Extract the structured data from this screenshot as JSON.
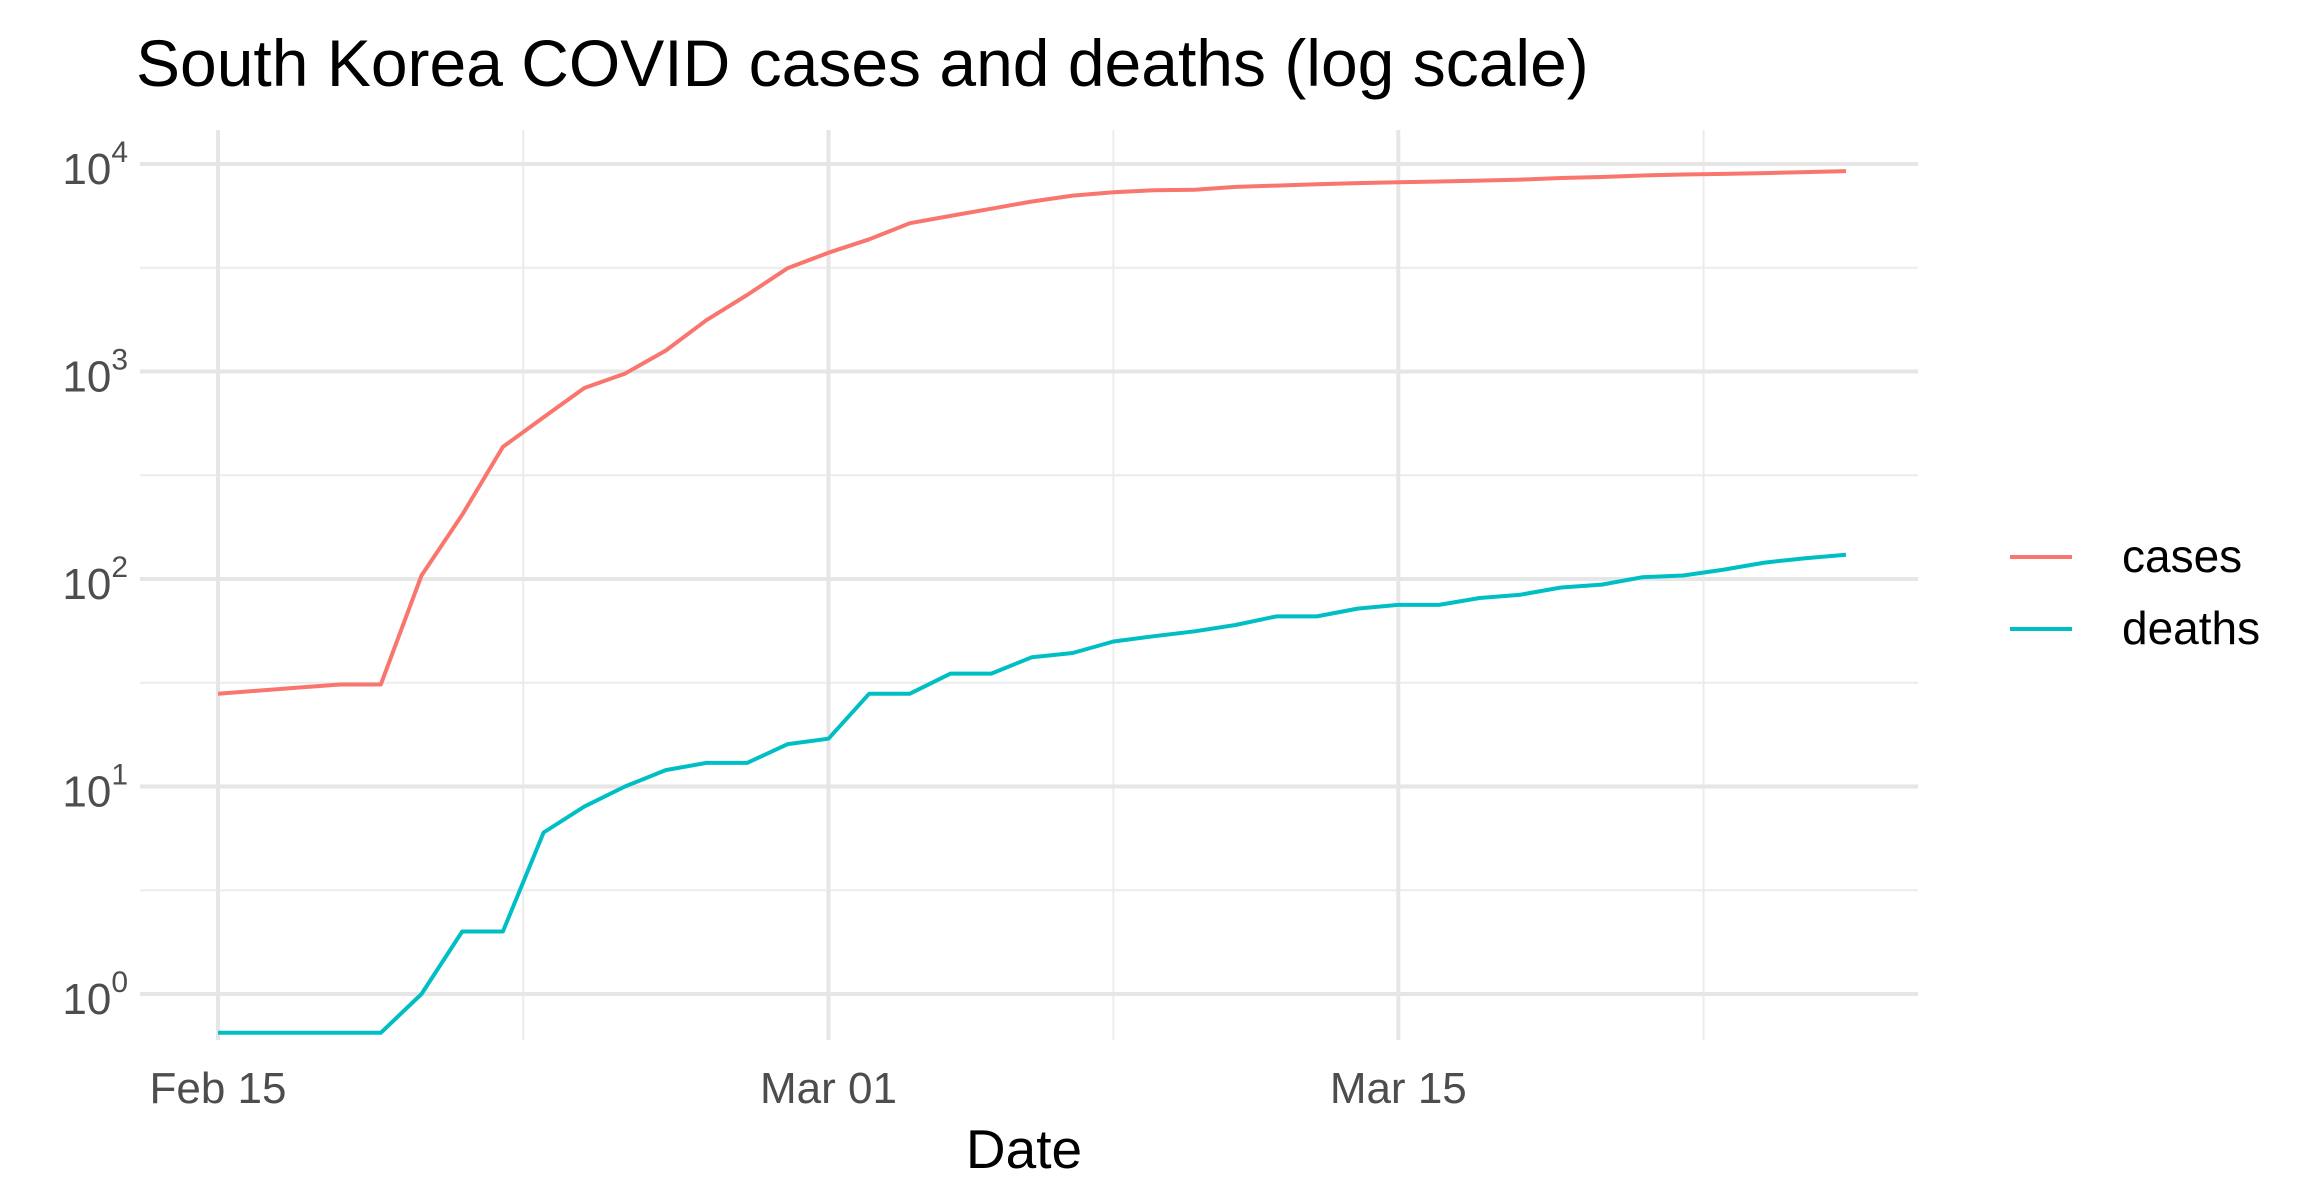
{
  "chart_data": {
    "type": "line",
    "title": "South Korea COVID cases and deaths (log scale)",
    "xlabel": "Date",
    "ylabel": "",
    "x_ticks": [
      {
        "label": "Feb 15",
        "date": "2020-02-15"
      },
      {
        "label": "Mar 01",
        "date": "2020-03-01"
      },
      {
        "label": "Mar 15",
        "date": "2020-03-15"
      }
    ],
    "y_scale": "log10",
    "y_ticks": [
      {
        "base": "10",
        "exp": "0",
        "value": 1
      },
      {
        "base": "10",
        "exp": "1",
        "value": 10
      },
      {
        "base": "10",
        "exp": "2",
        "value": 100
      },
      {
        "base": "10",
        "exp": "3",
        "value": 1000
      },
      {
        "base": "10",
        "exp": "4",
        "value": 10000
      }
    ],
    "x_range": [
      "2020-02-15",
      "2020-03-26"
    ],
    "ylim": [
      0.65,
      9500
    ],
    "grid": true,
    "legend_position": "right",
    "x": [
      "2020-02-15",
      "2020-02-16",
      "2020-02-17",
      "2020-02-18",
      "2020-02-19",
      "2020-02-20",
      "2020-02-21",
      "2020-02-22",
      "2020-02-23",
      "2020-02-24",
      "2020-02-25",
      "2020-02-26",
      "2020-02-27",
      "2020-02-28",
      "2020-02-29",
      "2020-03-01",
      "2020-03-02",
      "2020-03-03",
      "2020-03-04",
      "2020-03-05",
      "2020-03-06",
      "2020-03-07",
      "2020-03-08",
      "2020-03-09",
      "2020-03-10",
      "2020-03-11",
      "2020-03-12",
      "2020-03-13",
      "2020-03-14",
      "2020-03-15",
      "2020-03-16",
      "2020-03-17",
      "2020-03-18",
      "2020-03-19",
      "2020-03-20",
      "2020-03-21",
      "2020-03-22",
      "2020-03-23",
      "2020-03-24",
      "2020-03-25",
      "2020-03-26"
    ],
    "series": [
      {
        "name": "cases",
        "color": "#F8766D",
        "values": [
          28,
          29,
          30,
          31,
          31,
          104,
          204,
          433,
          602,
          833,
          977,
          1261,
          1766,
          2337,
          3150,
          3736,
          4335,
          5186,
          5621,
          6088,
          6593,
          7041,
          7313,
          7478,
          7513,
          7755,
          7869,
          7979,
          8086,
          8162,
          8236,
          8320,
          8413,
          8565,
          8652,
          8799,
          8897,
          8961,
          9037,
          9137,
          9241
        ]
      },
      {
        "name": "deaths",
        "color": "#00BFC4",
        "values": [
          0.65,
          0.65,
          0.65,
          0.65,
          0.65,
          1,
          2,
          2,
          6,
          8,
          10,
          12,
          13,
          13,
          16,
          17,
          28,
          28,
          35,
          35,
          42,
          44,
          50,
          53,
          56,
          60,
          66,
          66,
          72,
          75,
          75,
          81,
          84,
          91,
          94,
          102,
          104,
          111,
          120,
          126,
          131
        ]
      }
    ]
  }
}
